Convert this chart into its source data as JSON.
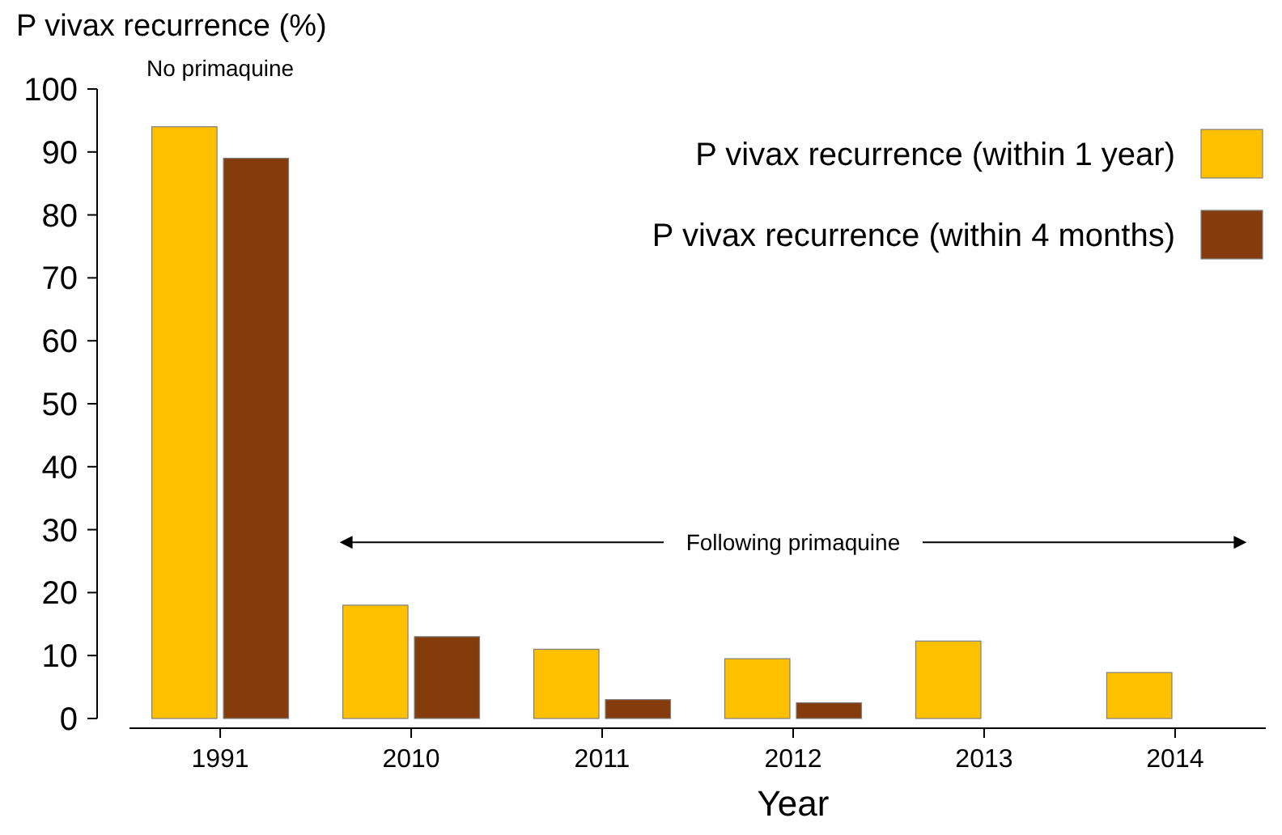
{
  "chart_data": {
    "type": "bar",
    "title": "P vivax recurrence (%)",
    "xlabel": "Year",
    "categories": [
      "1991",
      "2010",
      "2011",
      "2012",
      "2013",
      "2014"
    ],
    "series": [
      {
        "name": "P vivax recurrence (within 1 year)",
        "color": "#ffc000",
        "values": [
          94,
          18,
          11,
          9.5,
          12.3,
          7.3
        ]
      },
      {
        "name": "P vivax recurrence (within 4 months)",
        "color": "#843c0c",
        "values": [
          89,
          13,
          3,
          2.5,
          null,
          null
        ]
      }
    ],
    "ylim": [
      0,
      100
    ],
    "yticks": [
      0,
      10,
      20,
      30,
      40,
      50,
      60,
      70,
      80,
      90,
      100
    ],
    "grid": false,
    "legend": "top right",
    "annotations": [
      "No primaquine",
      "Following primaquine"
    ]
  }
}
